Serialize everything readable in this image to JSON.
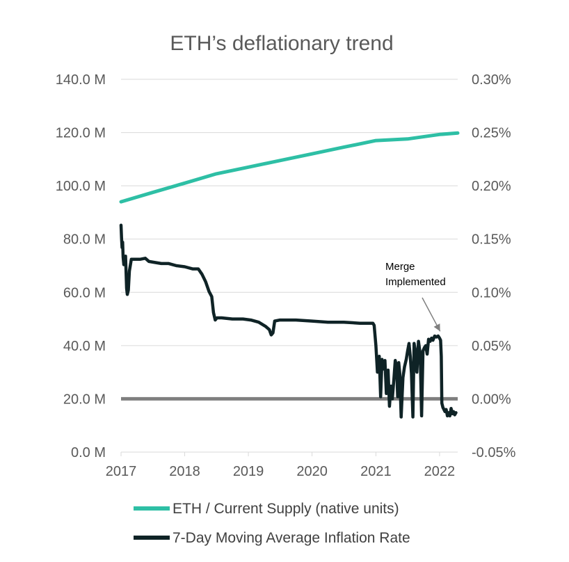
{
  "colors": {
    "supply": "#2ebfa5",
    "inflation": "#0f2326",
    "zero_line": "#7f7f7f",
    "grid": "#d9d9d9",
    "text": "#595959",
    "annotation_arrow": "#7f7f7f"
  },
  "chart_data": {
    "type": "line",
    "title": "ETH’s deflationary trend",
    "grid": true,
    "legend_position": "bottom",
    "x_axis": {
      "min": "2017-01-01",
      "max": "2022-04-15",
      "ticks": [
        "2017",
        "2018",
        "2019",
        "2020",
        "2021",
        "2022"
      ]
    },
    "y_left": {
      "min": 0,
      "max": 140,
      "unit": "M",
      "ticks": [
        "0.0 M",
        "20.0 M",
        "40.0 M",
        "60.0 M",
        "80.0 M",
        "100.0 M",
        "120.0 M",
        "140.0 M"
      ]
    },
    "y_right": {
      "min": -0.05,
      "max": 0.3,
      "unit": "%",
      "ticks": [
        "-0.05%",
        "0.00%",
        "0.05%",
        "0.10%",
        "0.15%",
        "0.20%",
        "0.25%",
        "0.30%"
      ]
    },
    "annotation": {
      "lines": [
        "Merge",
        "Implemented"
      ],
      "date": "2022-01-20",
      "value": 0.0595
    },
    "series": [
      {
        "name": "ETH / Current Supply (native units)",
        "axis": "left",
        "points": [
          [
            "2017-01-01",
            94.0
          ],
          [
            "2017-07-01",
            97.5
          ],
          [
            "2018-01-01",
            101.0
          ],
          [
            "2018-07-01",
            104.5
          ],
          [
            "2019-01-01",
            107.0
          ],
          [
            "2019-07-01",
            109.5
          ],
          [
            "2020-01-01",
            112.0
          ],
          [
            "2020-07-01",
            114.5
          ],
          [
            "2021-01-01",
            117.0
          ],
          [
            "2021-07-01",
            117.6
          ],
          [
            "2022-01-01",
            119.3
          ],
          [
            "2022-04-15",
            119.8
          ]
        ]
      },
      {
        "name": "7-Day Moving Average Inflation Rate",
        "axis": "right",
        "points": [
          [
            "2017-01-01",
            0.163
          ],
          [
            "2017-01-04",
            0.15
          ],
          [
            "2017-01-07",
            0.142
          ],
          [
            "2017-01-10",
            0.147
          ],
          [
            "2017-01-13",
            0.133
          ],
          [
            "2017-01-17",
            0.126
          ],
          [
            "2017-01-22",
            0.127
          ],
          [
            "2017-01-27",
            0.134
          ],
          [
            "2017-02-02",
            0.104
          ],
          [
            "2017-02-06",
            0.098
          ],
          [
            "2017-02-12",
            0.102
          ],
          [
            "2017-02-18",
            0.12
          ],
          [
            "2017-03-01",
            0.131
          ],
          [
            "2017-03-20",
            0.131
          ],
          [
            "2017-04-20",
            0.131
          ],
          [
            "2017-05-20",
            0.132
          ],
          [
            "2017-06-10",
            0.129
          ],
          [
            "2017-07-15",
            0.128
          ],
          [
            "2017-08-20",
            0.127
          ],
          [
            "2017-10-01",
            0.127
          ],
          [
            "2017-11-15",
            0.125
          ],
          [
            "2018-01-01",
            0.124
          ],
          [
            "2018-02-15",
            0.122
          ],
          [
            "2018-03-20",
            0.122
          ],
          [
            "2018-04-10",
            0.117
          ],
          [
            "2018-05-01",
            0.11
          ],
          [
            "2018-05-20",
            0.101
          ],
          [
            "2018-06-05",
            0.096
          ],
          [
            "2018-06-15",
            0.081
          ],
          [
            "2018-06-25",
            0.074
          ],
          [
            "2018-07-05",
            0.076
          ],
          [
            "2018-08-01",
            0.076
          ],
          [
            "2018-10-01",
            0.075
          ],
          [
            "2018-12-01",
            0.075
          ],
          [
            "2019-01-15",
            0.074
          ],
          [
            "2019-03-01",
            0.072
          ],
          [
            "2019-04-10",
            0.068
          ],
          [
            "2019-05-01",
            0.065
          ],
          [
            "2019-05-12",
            0.06
          ],
          [
            "2019-05-22",
            0.062
          ],
          [
            "2019-06-01",
            0.073
          ],
          [
            "2019-07-01",
            0.074
          ],
          [
            "2019-10-01",
            0.074
          ],
          [
            "2020-01-01",
            0.073
          ],
          [
            "2020-04-01",
            0.072
          ],
          [
            "2020-07-01",
            0.072
          ],
          [
            "2020-10-01",
            0.071
          ],
          [
            "2020-12-15",
            0.071
          ],
          [
            "2020-12-22",
            0.069
          ],
          [
            "2021-01-01",
            0.05
          ],
          [
            "2021-01-10",
            0.025
          ],
          [
            "2021-01-20",
            0.04
          ],
          [
            "2021-01-28",
            0.002
          ],
          [
            "2021-02-05",
            0.037
          ],
          [
            "2021-02-14",
            0.028
          ],
          [
            "2021-02-22",
            0.036
          ],
          [
            "2021-03-02",
            0.005
          ],
          [
            "2021-03-12",
            0.027
          ],
          [
            "2021-03-20",
            -0.007
          ],
          [
            "2021-03-28",
            0.012
          ],
          [
            "2021-04-05",
            0.0
          ],
          [
            "2021-04-14",
            0.018
          ],
          [
            "2021-04-22",
            0.036
          ],
          [
            "2021-04-30",
            0.03
          ],
          [
            "2021-05-06",
            0.002
          ],
          [
            "2021-05-12",
            0.034
          ],
          [
            "2021-05-18",
            0.024
          ],
          [
            "2021-05-26",
            -0.017
          ],
          [
            "2021-06-05",
            0.02
          ],
          [
            "2021-06-14",
            0.03
          ],
          [
            "2021-06-24",
            0.037
          ],
          [
            "2021-07-02",
            0.045
          ],
          [
            "2021-07-10",
            0.052
          ],
          [
            "2021-07-17",
            0.04
          ],
          [
            "2021-07-24",
            0.024
          ],
          [
            "2021-08-01",
            -0.017
          ],
          [
            "2021-08-08",
            0.052
          ],
          [
            "2021-08-15",
            0.045
          ],
          [
            "2021-08-24",
            0.025
          ],
          [
            "2021-09-02",
            0.054
          ],
          [
            "2021-09-12",
            0.042
          ],
          [
            "2021-09-20",
            -0.016
          ],
          [
            "2021-09-28",
            0.045
          ],
          [
            "2021-10-06",
            0.048
          ],
          [
            "2021-10-14",
            0.05
          ],
          [
            "2021-10-22",
            0.042
          ],
          [
            "2021-10-30",
            0.056
          ],
          [
            "2021-11-08",
            0.054
          ],
          [
            "2021-11-16",
            0.057
          ],
          [
            "2021-11-24",
            0.055
          ],
          [
            "2021-12-04",
            0.059
          ],
          [
            "2021-12-14",
            0.058
          ],
          [
            "2021-12-24",
            0.059
          ],
          [
            "2022-01-01",
            0.057
          ],
          [
            "2022-01-07",
            0.055
          ],
          [
            "2022-01-11",
            0.04
          ],
          [
            "2022-01-14",
            -0.004
          ],
          [
            "2022-01-20",
            -0.008
          ],
          [
            "2022-02-01",
            -0.012
          ],
          [
            "2022-02-08",
            -0.01
          ],
          [
            "2022-02-15",
            -0.016
          ],
          [
            "2022-02-22",
            -0.013
          ],
          [
            "2022-03-01",
            -0.016
          ],
          [
            "2022-03-08",
            -0.009
          ],
          [
            "2022-03-15",
            -0.014
          ],
          [
            "2022-03-22",
            -0.012
          ],
          [
            "2022-03-29",
            -0.015
          ],
          [
            "2022-04-05",
            -0.013
          ]
        ]
      }
    ]
  }
}
